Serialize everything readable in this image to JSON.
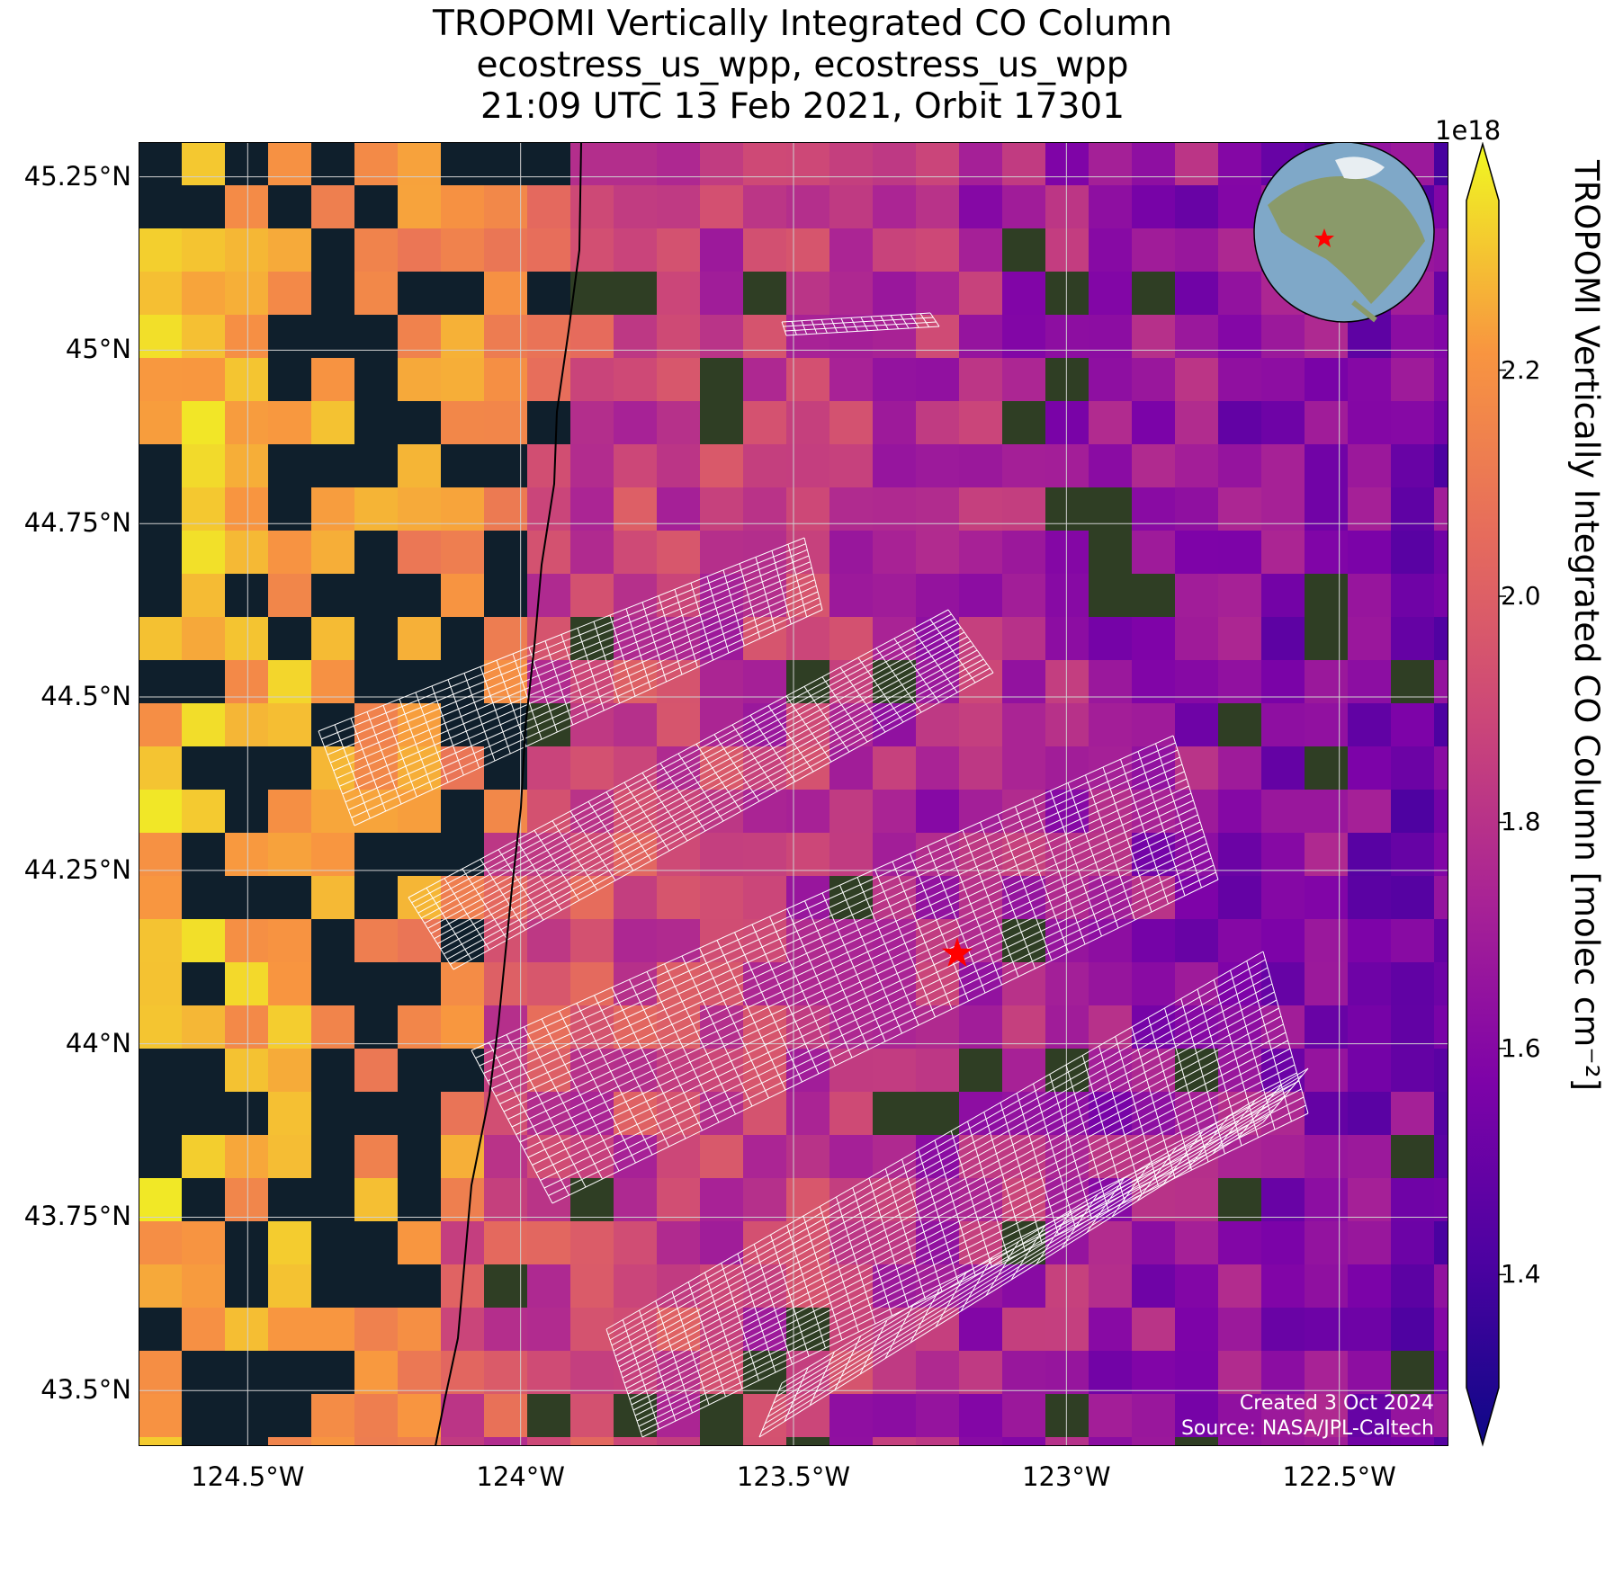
{
  "title": {
    "line1": "TROPOMI Vertically Integrated CO Column",
    "line2": "ecostress_us_wpp, ecostress_us_wpp",
    "line3": "21:09 UTC 13 Feb 2021, Orbit 17301"
  },
  "map": {
    "lat_ticks": [
      "45.25°N",
      "45°N",
      "44.75°N",
      "44.5°N",
      "44.25°N",
      "44°N",
      "43.75°N",
      "43.5°N"
    ],
    "lon_ticks": [
      "124.5°W",
      "124°W",
      "123.5°W",
      "123°W",
      "122.5°W"
    ],
    "extent": {
      "lon_min": -124.7,
      "lon_max": -122.3,
      "lat_min": 43.42,
      "lat_max": 45.3
    },
    "ocean_color": "#0f1f2c",
    "land_color": "#2f3e24",
    "marker": {
      "symbol": "red-star",
      "lon": -123.2,
      "lat": 44.13,
      "color": "#ff0000"
    },
    "inset": "globe-locator-icon",
    "credit_created": "Created 3 Oct 2024",
    "credit_source": "Source: NASA/JPL-Caltech"
  },
  "colorbar": {
    "exponent": "1e18",
    "label": "TROPOMI Vertically Integrated CO Column [molec cm⁻²]",
    "ticks": [
      "2.2",
      "2.0",
      "1.8",
      "1.6",
      "1.4"
    ],
    "colormap": "plasma",
    "range": [
      1.3,
      2.35
    ]
  }
}
